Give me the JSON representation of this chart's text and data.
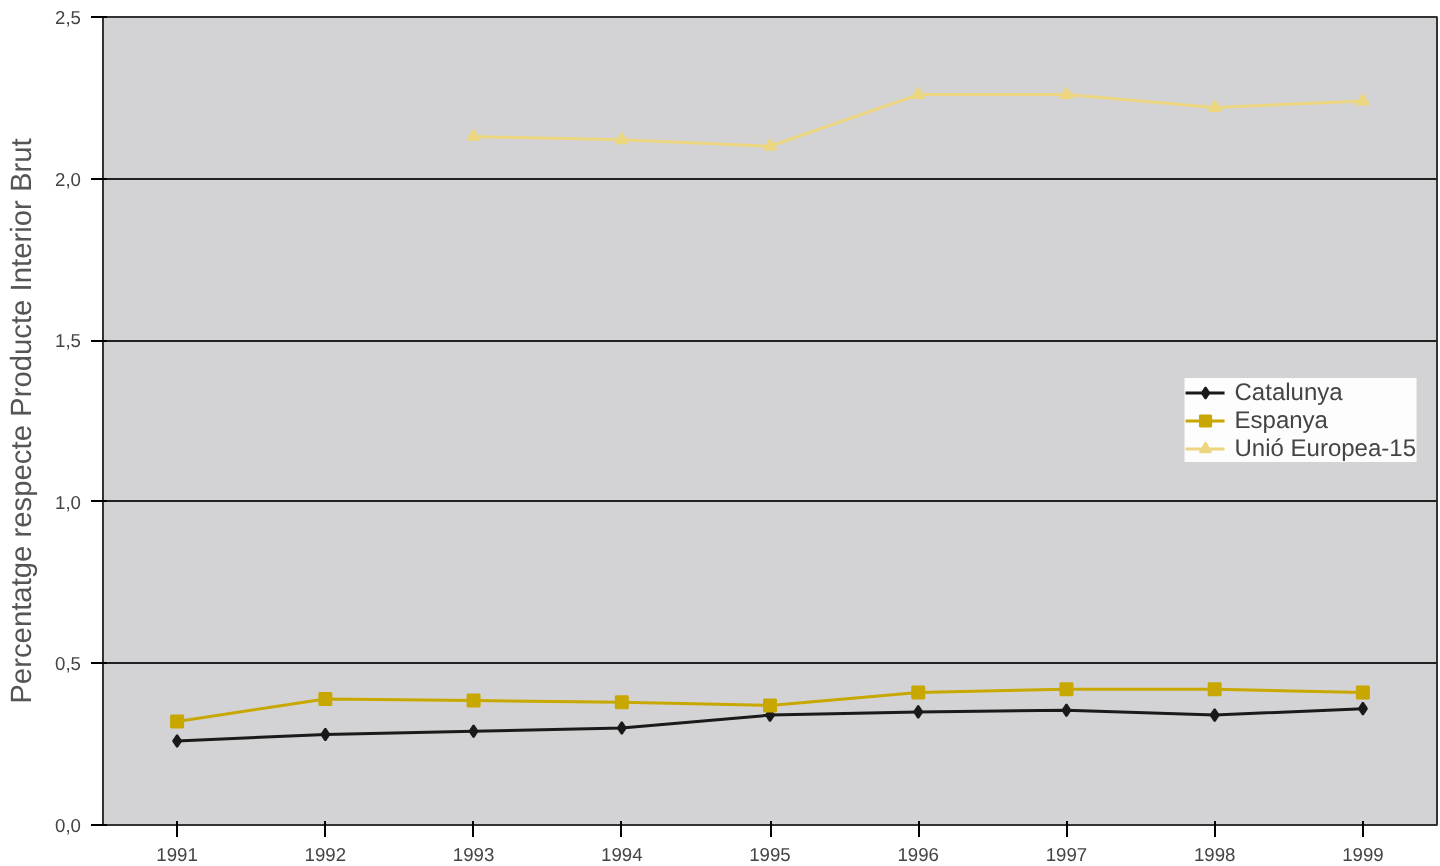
{
  "chart_data": {
    "type": "line",
    "ylabel": "Percentatge respecte Producte Interior Brut",
    "x": [
      1991,
      1992,
      1993,
      1994,
      1995,
      1996,
      1997,
      1998,
      1999
    ],
    "xlim": [
      1990.5,
      1999.5
    ],
    "xticks": [
      1991,
      1992,
      1993,
      1994,
      1995,
      1996,
      1997,
      1998,
      1999
    ],
    "ylim": [
      0,
      2.5
    ],
    "yticks": [
      {
        "value": 0,
        "label": "0,0"
      },
      {
        "value": 0.5,
        "label": "0,5"
      },
      {
        "value": 1.0,
        "label": "1,0"
      },
      {
        "value": 1.5,
        "label": "1,5"
      },
      {
        "value": 2.0,
        "label": "2,0"
      },
      {
        "value": 2.5,
        "label": "2,5"
      }
    ],
    "grid": "y",
    "legend": "right",
    "series": [
      {
        "name": "Catalunya",
        "color": "#1a1a1a",
        "marker": "diamond",
        "values": [
          0.26,
          0.28,
          0.29,
          0.3,
          0.34,
          0.35,
          0.355,
          0.34,
          0.36
        ]
      },
      {
        "name": "Espanya",
        "color": "#c8a800",
        "marker": "square",
        "values": [
          0.32,
          0.39,
          0.385,
          0.38,
          0.37,
          0.41,
          0.42,
          0.42,
          0.41
        ]
      },
      {
        "name": "Unió Europea-15",
        "color": "#ecd680",
        "marker": "triangle",
        "values": [
          null,
          null,
          2.13,
          2.12,
          2.1,
          2.26,
          2.26,
          2.22,
          2.24
        ]
      }
    ]
  }
}
